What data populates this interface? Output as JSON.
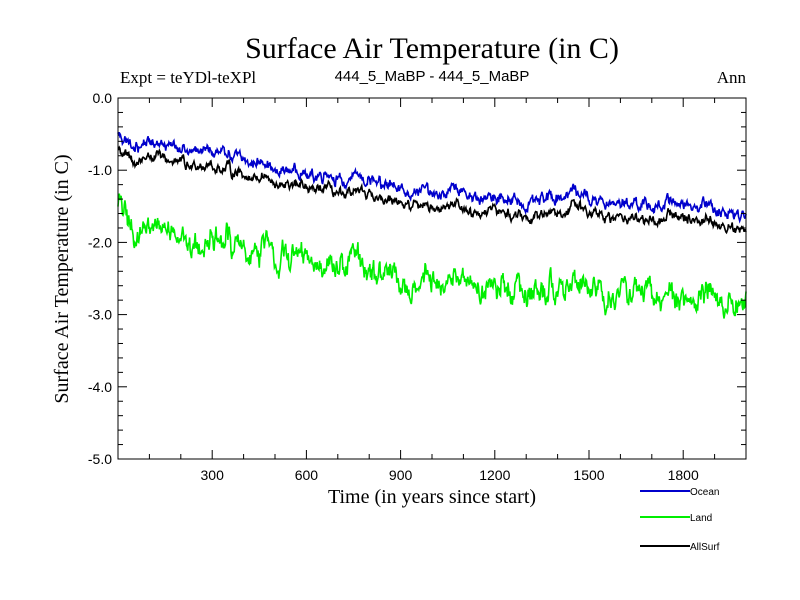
{
  "chart_data": {
    "type": "line",
    "title": "Surface Air Temperature (in C)",
    "subtitle_left": "Expt = teYDl-teXPl",
    "subtitle_center": "444_5_MaBP - 444_5_MaBP",
    "subtitle_right": "Ann",
    "xlabel": "Time (in years since start)",
    "ylabel": "Surface Air Temperature (in C)",
    "xlim": [
      0,
      2000
    ],
    "ylim": [
      -5.0,
      0.0
    ],
    "x_ticks": [
      300,
      600,
      900,
      1200,
      1500,
      1800
    ],
    "x_tick_labels": [
      "300",
      "600",
      "900",
      "1200",
      "1500",
      "1800"
    ],
    "y_ticks": [
      0.0,
      -1.0,
      -2.0,
      -3.0,
      -4.0,
      -5.0
    ],
    "y_tick_labels": [
      "0.0",
      "-1.0",
      "-2.0",
      "-3.0",
      "-4.0",
      "-5.0"
    ],
    "grid": false,
    "legend_position": "bottom-right, below plot",
    "x_step": 50,
    "series": [
      {
        "name": "Ocean",
        "color": "#0000cc",
        "noise": 0.14,
        "values": [
          -0.5,
          -0.7,
          -0.6,
          -0.65,
          -0.7,
          -0.7,
          -0.75,
          -0.8,
          -0.85,
          -0.9,
          -0.95,
          -1.0,
          -1.05,
          -1.05,
          -1.1,
          -1.15,
          -1.15,
          -1.2,
          -1.2,
          -1.25,
          -1.3,
          -1.3,
          -1.35,
          -1.4,
          -1.35,
          -1.4,
          -1.5,
          -1.4,
          -1.35,
          -1.3,
          -1.4,
          -1.45,
          -1.45,
          -1.5,
          -1.55,
          -1.45,
          -1.4,
          -1.5,
          -1.55,
          -1.6,
          -1.6
        ]
      },
      {
        "name": "Land",
        "color": "#00ee00",
        "noise": 0.3,
        "values": [
          -1.4,
          -1.9,
          -1.8,
          -1.8,
          -1.9,
          -2.0,
          -2.0,
          -2.0,
          -2.1,
          -2.1,
          -2.1,
          -2.2,
          -2.2,
          -2.3,
          -2.3,
          -2.3,
          -2.4,
          -2.4,
          -2.5,
          -2.5,
          -2.5,
          -2.6,
          -2.6,
          -2.6,
          -2.6,
          -2.65,
          -2.7,
          -2.65,
          -2.6,
          -2.6,
          -2.7,
          -2.7,
          -2.7,
          -2.75,
          -2.8,
          -2.75,
          -2.7,
          -2.75,
          -2.8,
          -2.85,
          -2.8
        ]
      },
      {
        "name": "AllSurf",
        "color": "#000000",
        "noise": 0.12,
        "values": [
          -0.7,
          -0.9,
          -0.8,
          -0.85,
          -0.9,
          -0.9,
          -0.95,
          -1.0,
          -1.05,
          -1.1,
          -1.15,
          -1.2,
          -1.25,
          -1.25,
          -1.3,
          -1.35,
          -1.35,
          -1.4,
          -1.4,
          -1.45,
          -1.5,
          -1.5,
          -1.55,
          -1.6,
          -1.55,
          -1.6,
          -1.7,
          -1.6,
          -1.55,
          -1.5,
          -1.6,
          -1.65,
          -1.65,
          -1.7,
          -1.75,
          -1.65,
          -1.6,
          -1.7,
          -1.75,
          -1.8,
          -1.8
        ]
      }
    ]
  }
}
